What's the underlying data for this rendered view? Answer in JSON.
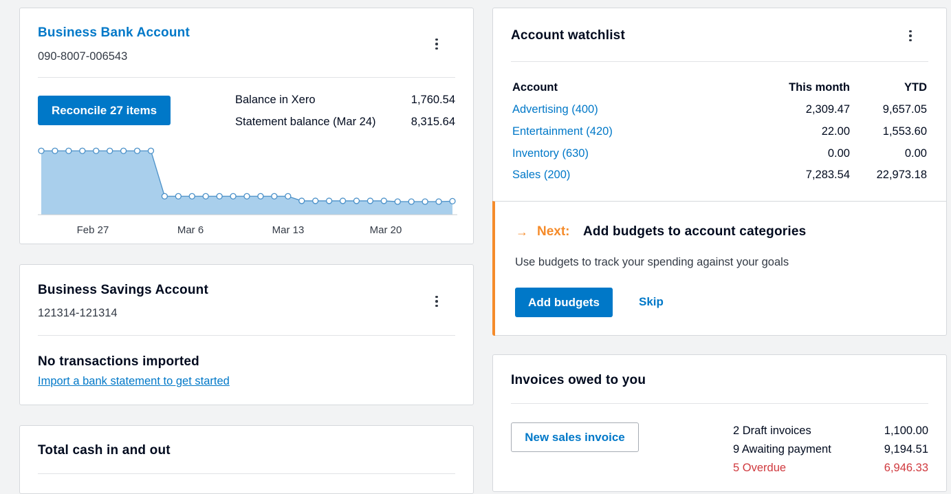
{
  "bank_account": {
    "title": "Business Bank Account",
    "number": "090-8007-006543",
    "reconcile_label": "Reconcile 27 items",
    "balance_label": "Balance in Xero",
    "balance_value": "1,760.54",
    "statement_label": "Statement balance (Mar 24)",
    "statement_value": "8,315.64"
  },
  "chart_data": {
    "type": "area",
    "x_ticks": [
      "Feb 27",
      "Mar 6",
      "Mar 13",
      "Mar 20"
    ],
    "values": [
      8315.64,
      8315.64,
      8315.64,
      8315.64,
      8315.64,
      8315.64,
      8315.64,
      8315.64,
      8315.64,
      2400,
      2400,
      2400,
      2400,
      2400,
      2400,
      2400,
      2400,
      2400,
      2400,
      1800,
      1800,
      1800,
      1800,
      1800,
      1800,
      1800,
      1700,
      1700,
      1700,
      1700,
      1760.54
    ],
    "ylim": [
      0,
      9500
    ],
    "fill_color": "#a9cfec",
    "line_color": "#4a90c8"
  },
  "savings_account": {
    "title": "Business Savings Account",
    "number": "121314-121314",
    "empty_title": "No transactions imported",
    "import_link": "Import a bank statement to get started"
  },
  "cash_card": {
    "title": "Total cash in and out"
  },
  "watchlist": {
    "title": "Account watchlist",
    "headers": {
      "account": "Account",
      "month": "This month",
      "ytd": "YTD"
    },
    "rows": [
      {
        "account": "Advertising (400)",
        "month": "2,309.47",
        "ytd": "9,657.05"
      },
      {
        "account": "Entertainment (420)",
        "month": "22.00",
        "ytd": "1,553.60"
      },
      {
        "account": "Inventory (630)",
        "month": "0.00",
        "ytd": "0.00"
      },
      {
        "account": "Sales (200)",
        "month": "7,283.54",
        "ytd": "22,973.18"
      }
    ],
    "next_arrow": "→",
    "next_label": "Next:",
    "next_title": "Add budgets to account categories",
    "next_desc": "Use budgets to track your spending against your goals",
    "add_budgets_label": "Add budgets",
    "skip_label": "Skip",
    "accent_color": "#f58b2a"
  },
  "invoices": {
    "title": "Invoices owed to you",
    "new_invoice_label": "New sales invoice",
    "rows": [
      {
        "label": "2 Draft invoices",
        "value": "1,100.00"
      },
      {
        "label": "9 Awaiting payment",
        "value": "9,194.51"
      },
      {
        "label": "5 Overdue",
        "value": "6,946.33"
      }
    ],
    "overdue_color": "#d0393e"
  }
}
